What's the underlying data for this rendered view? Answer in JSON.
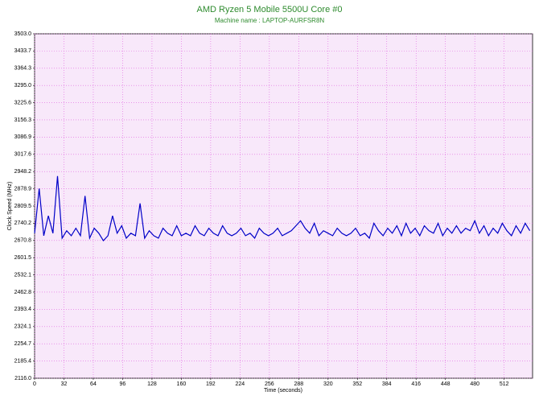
{
  "chart_data": {
    "type": "line",
    "title": "AMD Ryzen 5 Mobile 5500U Core #0",
    "subtitle": "Machine name : LAPTOP-AURFSR8N",
    "x_label": "Time (seconds)",
    "y_label": "Clock Speed (MHz)",
    "xlim": [
      0,
      543
    ],
    "xticks": [
      0,
      32,
      64,
      96,
      128,
      160,
      192,
      224,
      256,
      288,
      320,
      352,
      384,
      416,
      448,
      480,
      512
    ],
    "ylim": [
      2116,
      3503
    ],
    "yticks": [
      {
        "value": 2116,
        "label": "2116.0"
      },
      2185.4,
      2254.7,
      2324.1,
      2393.4,
      2462.8,
      2532.1,
      2601.5,
      2670.8,
      2740.2,
      2809.5,
      2878.9,
      2948.2,
      3017.6,
      3086.9,
      3156.3,
      3225.6,
      {
        "value": 3295,
        "label": "3295.0"
      },
      3364.3,
      3433.7,
      {
        "value": 3503,
        "label": "3503.0"
      }
    ],
    "grid": true,
    "series": [
      {
        "color": "#0000c8",
        "x": [
          0,
          5,
          10,
          15,
          20,
          25,
          30,
          35,
          40,
          45,
          50,
          55,
          60,
          65,
          70,
          75,
          80,
          85,
          90,
          95,
          100,
          105,
          110,
          115,
          120,
          125,
          130,
          135,
          140,
          145,
          150,
          155,
          160,
          165,
          170,
          175,
          180,
          185,
          190,
          195,
          200,
          205,
          210,
          215,
          220,
          225,
          230,
          235,
          240,
          245,
          250,
          255,
          260,
          265,
          270,
          275,
          280,
          285,
          290,
          295,
          300,
          305,
          310,
          315,
          320,
          325,
          330,
          335,
          340,
          345,
          350,
          355,
          360,
          365,
          370,
          375,
          380,
          385,
          390,
          395,
          400,
          405,
          410,
          415,
          420,
          425,
          430,
          435,
          440,
          445,
          450,
          455,
          460,
          465,
          470,
          475,
          480,
          485,
          490,
          495,
          500,
          505,
          510,
          515,
          520,
          525,
          530,
          535,
          540
        ],
        "values": [
          2700,
          2880,
          2690,
          2770,
          2700,
          2930,
          2680,
          2710,
          2690,
          2720,
          2690,
          2850,
          2680,
          2720,
          2700,
          2670,
          2690,
          2770,
          2700,
          2730,
          2680,
          2700,
          2690,
          2820,
          2680,
          2710,
          2690,
          2680,
          2720,
          2700,
          2690,
          2730,
          2690,
          2700,
          2690,
          2730,
          2700,
          2690,
          2720,
          2700,
          2690,
          2730,
          2700,
          2690,
          2700,
          2720,
          2690,
          2700,
          2680,
          2720,
          2700,
          2690,
          2700,
          2720,
          2690,
          2700,
          2710,
          2730,
          2750,
          2720,
          2700,
          2740,
          2690,
          2710,
          2700,
          2690,
          2720,
          2700,
          2690,
          2700,
          2720,
          2690,
          2700,
          2680,
          2740,
          2710,
          2690,
          2720,
          2700,
          2730,
          2690,
          2740,
          2700,
          2720,
          2690,
          2730,
          2710,
          2700,
          2740,
          2690,
          2720,
          2700,
          2730,
          2700,
          2720,
          2710,
          2750,
          2700,
          2730,
          2690,
          2720,
          2700,
          2740,
          2710,
          2690,
          2730,
          2700,
          2740,
          2710
        ]
      }
    ]
  }
}
